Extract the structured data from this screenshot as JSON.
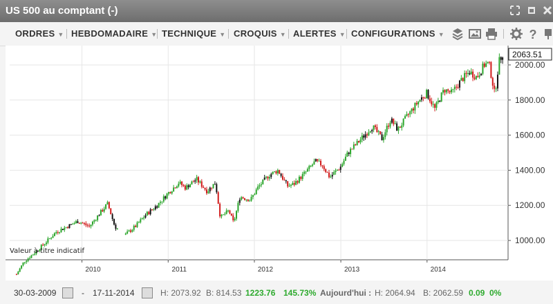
{
  "window": {
    "title": "US 500 au comptant (-)"
  },
  "toolbar": {
    "menus": [
      "ORDRES",
      "HEBDOMADAIRE",
      "TECHNIQUE",
      "CROQUIS",
      "ALERTES",
      "CONFIGURATIONS"
    ]
  },
  "chart_data": {
    "type": "candlestick",
    "x_tick_labels": [
      "2010",
      "2011",
      "2012",
      "2013",
      "2014"
    ],
    "y_tick_labels": [
      "1000.00",
      "1200.00",
      "1400.00",
      "1600.00",
      "1800.00",
      "2000.00"
    ],
    "ylim": [
      890,
      2110
    ],
    "last_price_label": "2063.51",
    "note": "Valeur à titre indicatif",
    "colors": {
      "up": "#2aa52a",
      "down": "#d11a1a",
      "neutral": "#111111"
    },
    "series": [
      {
        "x": "2009-03-30",
        "y": 807
      },
      {
        "x": "2009-05-01",
        "y": 880
      },
      {
        "x": "2009-06-15",
        "y": 930
      },
      {
        "x": "2009-08-01",
        "y": 990
      },
      {
        "x": "2009-09-15",
        "y": 1050
      },
      {
        "x": "2009-11-01",
        "y": 1080
      },
      {
        "x": "2009-12-15",
        "y": 1110
      },
      {
        "x": "2010-02-01",
        "y": 1080
      },
      {
        "x": "2010-03-15",
        "y": 1150
      },
      {
        "x": "2010-04-20",
        "y": 1210
      },
      {
        "x": "2010-05-20",
        "y": 1080
      },
      {
        "x": "2010-07-01",
        "y": 1030
      },
      {
        "x": "2010-08-15",
        "y": 1080
      },
      {
        "x": "2010-10-01",
        "y": 1150
      },
      {
        "x": "2010-11-15",
        "y": 1200
      },
      {
        "x": "2011-01-01",
        "y": 1270
      },
      {
        "x": "2011-02-15",
        "y": 1330
      },
      {
        "x": "2011-03-15",
        "y": 1300
      },
      {
        "x": "2011-04-30",
        "y": 1350
      },
      {
        "x": "2011-06-15",
        "y": 1280
      },
      {
        "x": "2011-07-20",
        "y": 1330
      },
      {
        "x": "2011-08-10",
        "y": 1130
      },
      {
        "x": "2011-09-15",
        "y": 1170
      },
      {
        "x": "2011-10-05",
        "y": 1100
      },
      {
        "x": "2011-11-01",
        "y": 1250
      },
      {
        "x": "2011-12-15",
        "y": 1230
      },
      {
        "x": "2012-01-15",
        "y": 1300
      },
      {
        "x": "2012-03-01",
        "y": 1370
      },
      {
        "x": "2012-04-10",
        "y": 1400
      },
      {
        "x": "2012-05-20",
        "y": 1310
      },
      {
        "x": "2012-06-15",
        "y": 1320
      },
      {
        "x": "2012-07-30",
        "y": 1380
      },
      {
        "x": "2012-09-15",
        "y": 1450
      },
      {
        "x": "2012-10-15",
        "y": 1430
      },
      {
        "x": "2012-11-15",
        "y": 1360
      },
      {
        "x": "2012-12-31",
        "y": 1420
      },
      {
        "x": "2013-02-01",
        "y": 1500
      },
      {
        "x": "2013-03-15",
        "y": 1560
      },
      {
        "x": "2013-05-15",
        "y": 1650
      },
      {
        "x": "2013-06-24",
        "y": 1580
      },
      {
        "x": "2013-07-31",
        "y": 1690
      },
      {
        "x": "2013-08-30",
        "y": 1630
      },
      {
        "x": "2013-10-15",
        "y": 1720
      },
      {
        "x": "2013-11-30",
        "y": 1800
      },
      {
        "x": "2013-12-31",
        "y": 1840
      },
      {
        "x": "2014-02-03",
        "y": 1750
      },
      {
        "x": "2014-03-15",
        "y": 1860
      },
      {
        "x": "2014-04-15",
        "y": 1840
      },
      {
        "x": "2014-05-30",
        "y": 1920
      },
      {
        "x": "2014-06-30",
        "y": 1960
      },
      {
        "x": "2014-07-31",
        "y": 1930
      },
      {
        "x": "2014-08-31",
        "y": 2000
      },
      {
        "x": "2014-09-20",
        "y": 2010
      },
      {
        "x": "2014-10-15",
        "y": 1830
      },
      {
        "x": "2014-11-01",
        "y": 2018
      },
      {
        "x": "2014-11-17",
        "y": 2063
      }
    ]
  },
  "status": {
    "date_from": "30-03-2009",
    "dash": "-",
    "date_to": "17-11-2014",
    "high": "H: 2073.92",
    "low": "B: 814.53",
    "change": "1223.76",
    "change_pct": "145.73%",
    "today_label": "Aujourd'hui :",
    "today_high": "H: 2064.94",
    "today_low": "B: 2062.59",
    "today_change": "0.09",
    "today_pct": "0%"
  }
}
